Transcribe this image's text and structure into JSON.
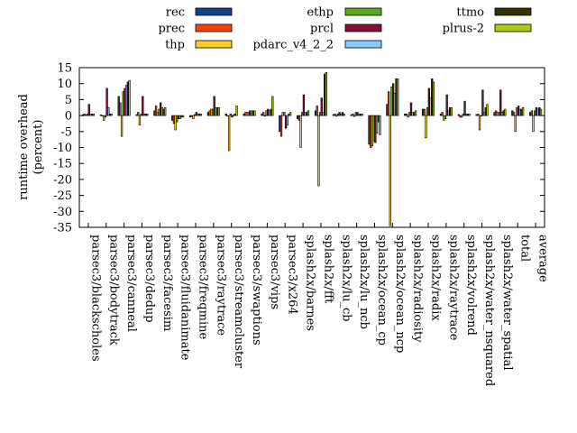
{
  "chart_data": {
    "type": "bar",
    "title": "",
    "xlabel": "",
    "ylabel": "runtime overhead\n(percent)",
    "ylim": [
      -35,
      15
    ],
    "yticks": [
      -35,
      -30,
      -25,
      -20,
      -15,
      -10,
      -5,
      0,
      5,
      10,
      15
    ],
    "grid": false,
    "legend_position": "top",
    "categories": [
      "parsec3/blackscholes",
      "parsec3/bodytrack",
      "parsec3/canneal",
      "parsec3/dedup",
      "parsec3/facesim",
      "parsec3/fluidanimate",
      "parsec3/freqmine",
      "parsec3/raytrace",
      "parsec3/streamcluster",
      "parsec3/swaptions",
      "parsec3/vips",
      "parsec3/x264",
      "splash2x/barnes",
      "splash2x/fft",
      "splash2x/lu_cb",
      "splash2x/lu_ncb",
      "splash2x/ocean_cp",
      "splash2x/ocean_ncp",
      "splash2x/radiosity",
      "splash2x/radix",
      "splash2x/raytrace",
      "splash2x/volrend",
      "splash2x/water_nsquared",
      "splash2x/water_spatial",
      "total",
      "average"
    ],
    "series": [
      {
        "name": "rec",
        "color": "#114488",
        "values": [
          0.3,
          0.2,
          6.0,
          0.3,
          1.5,
          -1.5,
          -0.5,
          1.0,
          0.5,
          0.5,
          0.5,
          -5.0,
          -1.0,
          1.5,
          0.3,
          0.2,
          -9.0,
          3.5,
          0.5,
          2.0,
          0.5,
          0.3,
          0.3,
          1.0,
          1.5,
          1.0
        ]
      },
      {
        "name": "prec",
        "color": "#ff4400",
        "values": [
          0.5,
          0.0,
          4.0,
          1.0,
          3.0,
          -2.5,
          -0.3,
          1.5,
          -0.2,
          1.0,
          1.0,
          -6.5,
          -1.5,
          3.0,
          0.5,
          0.5,
          -10.0,
          7.5,
          0.5,
          2.0,
          1.0,
          -0.5,
          0.5,
          1.5,
          1.0,
          1.5
        ]
      },
      {
        "name": "thp",
        "color": "#ffcc22",
        "values": [
          0.2,
          -1.5,
          -6.5,
          -3.0,
          1.0,
          -4.5,
          -1.0,
          2.0,
          -11.0,
          1.0,
          0.0,
          1.0,
          -10.0,
          -22.0,
          -0.2,
          -0.3,
          -9.5,
          -34.5,
          -0.5,
          -7.0,
          -1.5,
          -0.5,
          -4.5,
          1.0,
          -5.0,
          -5.0
        ]
      },
      {
        "name": "ethp",
        "color": "#55aa22",
        "values": [
          0.5,
          -0.5,
          7.5,
          0.5,
          2.0,
          -2.0,
          0.3,
          2.0,
          0.5,
          1.0,
          1.5,
          1.0,
          1.0,
          1.0,
          0.5,
          1.0,
          -8.0,
          9.0,
          1.0,
          2.5,
          -1.0,
          0.5,
          0.0,
          1.0,
          2.5,
          1.5
        ]
      },
      {
        "name": "prcl",
        "color": "#881133",
        "values": [
          3.5,
          8.5,
          8.5,
          6.0,
          4.0,
          -1.0,
          1.0,
          6.0,
          -0.5,
          1.5,
          2.0,
          -4.0,
          6.5,
          5.5,
          1.0,
          1.0,
          -8.5,
          10.0,
          4.0,
          8.5,
          6.5,
          4.5,
          8.0,
          8.0,
          3.0,
          2.5
        ]
      },
      {
        "name": "pdarc_v4_2_2",
        "color": "#88ccff",
        "values": [
          0.5,
          2.5,
          9.5,
          0.5,
          2.5,
          -1.0,
          0.5,
          2.5,
          0.3,
          1.5,
          1.5,
          -3.0,
          1.0,
          1.0,
          0.5,
          0.5,
          -5.5,
          7.0,
          1.0,
          5.5,
          1.5,
          0.5,
          1.0,
          1.0,
          2.0,
          2.0
        ]
      },
      {
        "name": "ttmo",
        "color": "#333300",
        "values": [
          0.5,
          0.5,
          10.5,
          0.5,
          2.0,
          -0.5,
          0.5,
          2.5,
          0.5,
          1.5,
          2.0,
          0.5,
          1.0,
          13.0,
          1.0,
          0.5,
          -2.0,
          11.5,
          1.0,
          11.5,
          2.5,
          0.5,
          2.5,
          1.5,
          2.0,
          2.5
        ]
      },
      {
        "name": "plrus-2",
        "color": "#aacc11",
        "values": [
          0.5,
          0.5,
          11.0,
          0.5,
          2.5,
          -0.5,
          0.5,
          2.5,
          3.0,
          1.5,
          6.0,
          1.0,
          1.5,
          13.5,
          0.5,
          0.5,
          -6.0,
          11.5,
          1.5,
          10.5,
          2.5,
          0.5,
          3.5,
          2.0,
          2.5,
          2.0
        ]
      }
    ]
  }
}
